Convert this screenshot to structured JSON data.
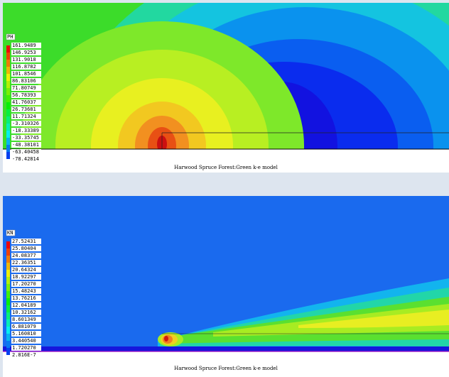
{
  "panels": [
    {
      "variable": "PH",
      "legend": [
        "161.9489",
        "146.9253",
        "131.9018",
        "116.8782",
        "101.8546",
        "86.83106",
        "71.80749",
        "56.78393",
        "41.76037",
        "26.73681",
        "11.71324",
        "-3.310326",
        "-18.33389",
        "-33.35745",
        "-48.38101",
        "-63.40458",
        "-78.42814"
      ],
      "caption": "Harwood Spruce Forest:Green k-e model"
    },
    {
      "variable": "KN",
      "legend": [
        "27.52431",
        "25.80404",
        "24.08377",
        "22.36351",
        "20.64324",
        "18.92297",
        "17.20270",
        "15.48243",
        "13.76216",
        "12.04189",
        "10.32162",
        "8.601349",
        "6.881079",
        "5.160810",
        "3.440540",
        "1.720270",
        "2.816E-7"
      ],
      "caption": "Harwood Spruce Forest:Green k-e model"
    }
  ]
}
